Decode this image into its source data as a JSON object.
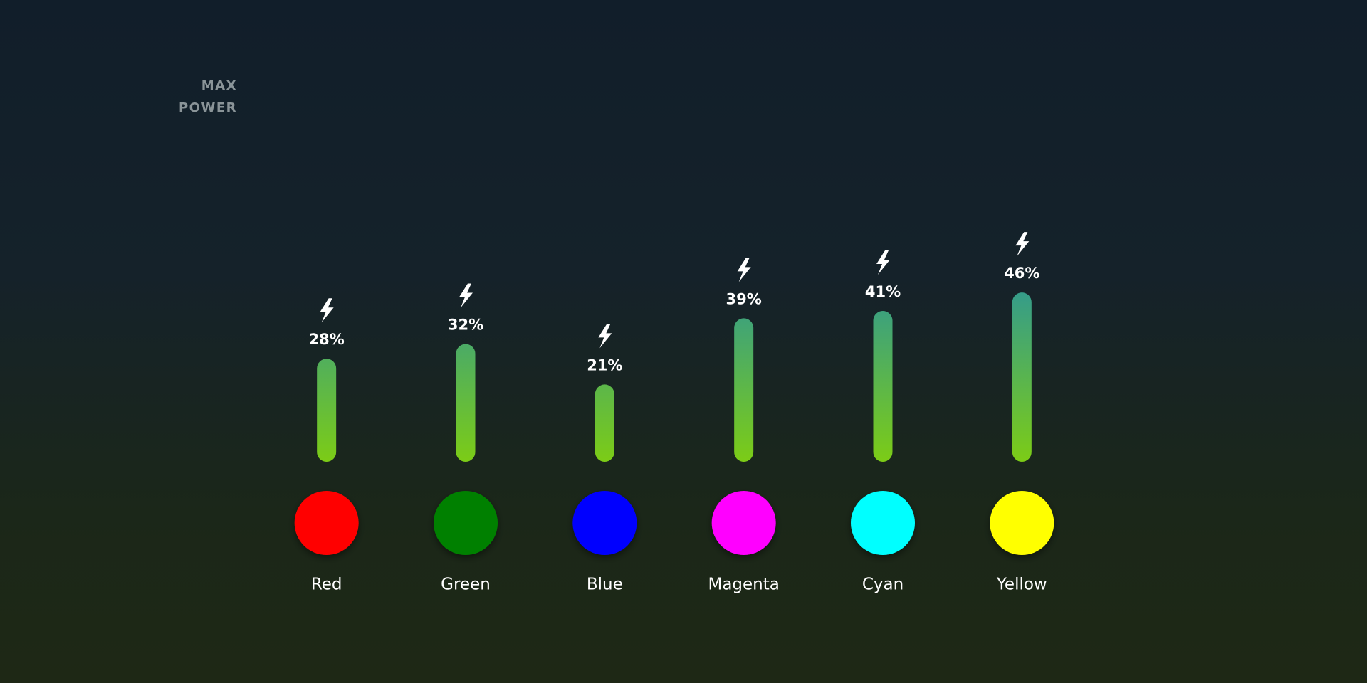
{
  "chart_data": {
    "type": "bar",
    "categories": [
      "Red",
      "Green",
      "Blue",
      "Magenta",
      "Cyan",
      "Yellow"
    ],
    "category_colors": [
      "#ff0000",
      "#008000",
      "#0000ff",
      "#ff00ff",
      "#00ffff",
      "#ffff00"
    ],
    "values": [
      28,
      32,
      21,
      39,
      41,
      46
    ],
    "value_labels": [
      "28%",
      "32%",
      "21%",
      "39%",
      "41%",
      "46%"
    ],
    "bar_gradient": [
      "#7ccc16",
      "#2f9893"
    ],
    "ylim": [
      0,
      100
    ],
    "yticks": [
      0,
      10,
      20,
      30,
      40,
      50,
      60,
      70,
      80,
      90,
      {
        "value": 100,
        "label": "MAX POWER"
      }
    ],
    "grid": true
  }
}
